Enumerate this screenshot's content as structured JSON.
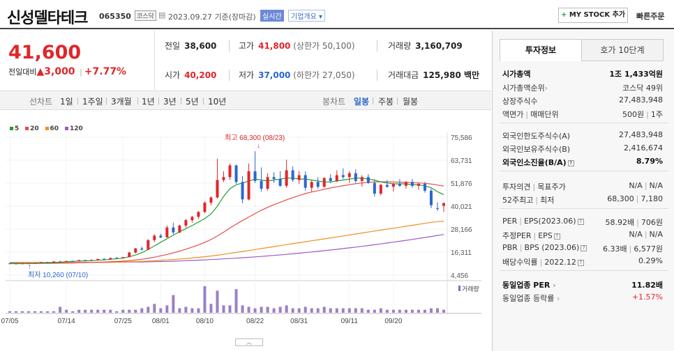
{
  "header": {
    "name": "신성델타테크",
    "code": "065350",
    "market": "코스닥",
    "date": "2023.09.27 기준(장마감)",
    "realtime": "실시간",
    "overview": "기업개요 ▾",
    "mystock_label": "MY STOCK 추가",
    "mystock_plus": "+",
    "quick_order": "빠른주문"
  },
  "quote": {
    "price": "41,600",
    "change_label": "전일대비",
    "change_arrow": "▲",
    "change": "3,000",
    "change_pct": "+7.77%",
    "prev_label": "전일",
    "prev": "38,600",
    "high_label": "고가",
    "high": "41,800",
    "high_limit": "(상한가 50,100)",
    "volume_label": "거래량",
    "volume": "3,160,709",
    "open_label": "시가",
    "open": "40,200",
    "low_label": "저가",
    "low": "37,000",
    "low_limit": "(하한가 27,050)",
    "amount_label": "거래대금",
    "amount": "125,980 백만"
  },
  "toolbar": {
    "line_label": "선차트",
    "line_items": [
      "1일",
      "1주일",
      "3개월",
      "1년",
      "3년",
      "5년",
      "10년"
    ],
    "candle_label": "봉차트",
    "candle_items": [
      "일봉",
      "주봉",
      "월봉"
    ],
    "selected": "일봉"
  },
  "legend": [
    {
      "label": "5",
      "color": "#23a02b"
    },
    {
      "label": "20",
      "color": "#e84a4a"
    },
    {
      "label": "60",
      "color": "#f0901e"
    },
    {
      "label": "120",
      "color": "#9a5bc6"
    }
  ],
  "chart_data": {
    "type": "candlestick",
    "y_ticks": [
      "75,586",
      "63,731",
      "51,876",
      "40,021",
      "28,166",
      "16,311",
      "4,456"
    ],
    "ylim": [
      4456,
      75586
    ],
    "x_ticks": [
      "07/05",
      "07/14",
      "07/25",
      "08/01",
      "08/10",
      "08/22",
      "08/31",
      "09/11",
      "09/20"
    ],
    "high_annotation": "최고 68,300 (08/23)",
    "low_annotation": "최저 10,260 (07/10)",
    "volume_label": "거래량",
    "candles": [
      [
        10500,
        10600,
        10300,
        10400
      ],
      [
        10400,
        10450,
        10260,
        10300
      ],
      [
        10300,
        10500,
        10260,
        10450
      ],
      [
        10450,
        10600,
        10400,
        10500
      ],
      [
        10500,
        10700,
        10400,
        10600
      ],
      [
        10600,
        11200,
        10500,
        11100
      ],
      [
        11100,
        11300,
        10800,
        10900
      ],
      [
        10900,
        11600,
        10800,
        11500
      ],
      [
        11500,
        11800,
        11300,
        11400
      ],
      [
        11400,
        11900,
        11300,
        11700
      ],
      [
        11700,
        11900,
        11500,
        11600
      ],
      [
        11600,
        12300,
        11500,
        12200
      ],
      [
        12200,
        12400,
        11900,
        12000
      ],
      [
        12000,
        12500,
        11900,
        12300
      ],
      [
        12300,
        12900,
        12200,
        12800
      ],
      [
        12800,
        13200,
        12400,
        12500
      ],
      [
        12500,
        13500,
        12400,
        13300
      ],
      [
        13300,
        13800,
        13000,
        13200
      ],
      [
        13200,
        13900,
        13100,
        13700
      ],
      [
        13700,
        16500,
        13600,
        16100
      ],
      [
        16100,
        18500,
        15600,
        18200
      ],
      [
        18200,
        19200,
        17200,
        17600
      ],
      [
        17600,
        23000,
        17400,
        22500
      ],
      [
        22500,
        25500,
        21500,
        24800
      ],
      [
        24800,
        25800,
        23500,
        23900
      ],
      [
        23900,
        30000,
        23800,
        29000
      ],
      [
        29000,
        31500,
        25500,
        26500
      ],
      [
        26500,
        30500,
        26000,
        30000
      ],
      [
        30000,
        33500,
        29000,
        32800
      ],
      [
        32800,
        35000,
        31500,
        34500
      ],
      [
        34500,
        37500,
        33500,
        37000
      ],
      [
        37000,
        42500,
        36500,
        41800
      ],
      [
        41800,
        45000,
        40500,
        44500
      ],
      [
        44500,
        64500,
        44000,
        53500
      ],
      [
        53500,
        58000,
        52500,
        55000
      ],
      [
        55000,
        62000,
        53500,
        61000
      ],
      [
        61000,
        61500,
        51500,
        52500
      ],
      [
        52500,
        55500,
        41500,
        43500
      ],
      [
        43500,
        62000,
        43000,
        58000
      ],
      [
        58000,
        68300,
        52000,
        53000
      ],
      [
        53000,
        60000,
        47500,
        49000
      ],
      [
        49000,
        57000,
        48000,
        55000
      ],
      [
        55000,
        57500,
        52000,
        54000
      ],
      [
        54000,
        58000,
        50000,
        50500
      ],
      [
        50500,
        64000,
        49500,
        58500
      ],
      [
        58500,
        60500,
        52500,
        53500
      ],
      [
        53500,
        58000,
        51500,
        56000
      ],
      [
        56000,
        58000,
        48000,
        49500
      ],
      [
        49500,
        53500,
        47500,
        52500
      ],
      [
        52500,
        55000,
        49000,
        50000
      ],
      [
        50000,
        55000,
        49500,
        54500
      ],
      [
        54500,
        56500,
        52000,
        53000
      ],
      [
        53000,
        58500,
        52500,
        56000
      ],
      [
        56000,
        59500,
        54000,
        55000
      ],
      [
        55000,
        58000,
        52000,
        57000
      ],
      [
        57000,
        59000,
        52000,
        53000
      ],
      [
        53000,
        56000,
        50000,
        55000
      ],
      [
        55000,
        56500,
        51500,
        52000
      ],
      [
        52000,
        53500,
        45000,
        46500
      ],
      [
        46500,
        51500,
        45500,
        51000
      ],
      [
        51000,
        53500,
        49500,
        50000
      ],
      [
        50000,
        52000,
        47500,
        51500
      ],
      [
        51500,
        54000,
        50000,
        50500
      ],
      [
        50500,
        53000,
        49000,
        52500
      ],
      [
        52500,
        54000,
        49500,
        50500
      ],
      [
        50500,
        52000,
        48500,
        51500
      ],
      [
        51500,
        52500,
        47000,
        48000
      ],
      [
        48000,
        49000,
        39000,
        40500
      ],
      [
        39000,
        42000,
        37500,
        38600
      ],
      [
        40200,
        41800,
        37000,
        41600
      ]
    ],
    "volumes": [
      1,
      1,
      1,
      1,
      1,
      1,
      1,
      1,
      4,
      2,
      1,
      2,
      2,
      2,
      2,
      2,
      2,
      1,
      2,
      2,
      2,
      3,
      4,
      6,
      3,
      5,
      12,
      3,
      4,
      3,
      3,
      18,
      6,
      15,
      5,
      5,
      16,
      5,
      4,
      3,
      4,
      4,
      3,
      4,
      5,
      3,
      3,
      4,
      3,
      3,
      4,
      3,
      3,
      3,
      3,
      3,
      3,
      2,
      2,
      3,
      2,
      2,
      2,
      2,
      2,
      2,
      2,
      3,
      3,
      2
    ],
    "ma5": [
      10400,
      10380,
      10370,
      10400,
      10450,
      10600,
      10700,
      10900,
      11100,
      11300,
      11500,
      11700,
      11800,
      11900,
      12100,
      12300,
      12600,
      12900,
      13200,
      13900,
      14800,
      16000,
      17600,
      19500,
      21400,
      23200,
      25100,
      26800,
      28400,
      30000,
      31800,
      33600,
      36000,
      40000,
      45000,
      49000,
      51000,
      52000,
      53000,
      54000,
      53500,
      53000,
      53500,
      54000,
      54500,
      54500,
      54000,
      54000,
      53500,
      53000,
      52500,
      52500,
      53000,
      53500,
      54000,
      54500,
      54500,
      54000,
      53500,
      52500,
      52000,
      51500,
      51500,
      51500,
      51000,
      51000,
      50500,
      49500,
      47500,
      46000
    ],
    "ma20": [
      10600,
      10550,
      10500,
      10480,
      10470,
      10480,
      10500,
      10550,
      10600,
      10650,
      10700,
      10800,
      10900,
      11000,
      11100,
      11200,
      11350,
      11500,
      11650,
      11900,
      12200,
      12600,
      13100,
      13700,
      14400,
      15100,
      15900,
      16800,
      17800,
      18900,
      20000,
      21300,
      22800,
      24600,
      26600,
      28700,
      30700,
      32600,
      34400,
      36200,
      37900,
      39400,
      40800,
      42000,
      43300,
      44400,
      45500,
      46500,
      47300,
      48000,
      48700,
      49400,
      50000,
      50600,
      51100,
      51600,
      52000,
      52300,
      52500,
      52600,
      52600,
      52500,
      52400,
      52300,
      52200,
      52000,
      51800,
      51400,
      50900,
      50400
    ],
    "ma60": [
      10900,
      10880,
      10860,
      10850,
      10840,
      10840,
      10840,
      10850,
      10860,
      10870,
      10890,
      10910,
      10940,
      10970,
      11000,
      11050,
      11100,
      11160,
      11230,
      11320,
      11420,
      11540,
      11680,
      11850,
      12050,
      12270,
      12500,
      12750,
      13010,
      13300,
      13600,
      13930,
      14300,
      14700,
      15150,
      15650,
      16150,
      16650,
      17150,
      17650,
      18150,
      18650,
      19150,
      19650,
      20150,
      20650,
      21150,
      21650,
      22150,
      22650,
      23150,
      23650,
      24150,
      24650,
      25150,
      25650,
      26150,
      26650,
      27150,
      27650,
      28150,
      28650,
      29150,
      29650,
      30150,
      30650,
      31150,
      31650,
      32000,
      32300
    ],
    "ma120": [
      11000,
      10990,
      10980,
      10970,
      10960,
      10950,
      10950,
      10950,
      10950,
      10960,
      10970,
      10980,
      10990,
      11000,
      11020,
      11040,
      11060,
      11090,
      11120,
      11160,
      11200,
      11250,
      11310,
      11380,
      11460,
      11550,
      11650,
      11760,
      11880,
      12010,
      12150,
      12300,
      12460,
      12630,
      12810,
      13000,
      13200,
      13410,
      13630,
      13860,
      14100,
      14350,
      14610,
      14880,
      15160,
      15450,
      15750,
      16060,
      16380,
      16710,
      17050,
      17400,
      17760,
      18130,
      18510,
      18900,
      19300,
      19710,
      20130,
      20560,
      21000,
      21450,
      21910,
      22380,
      22860,
      23350,
      23850,
      24360,
      24880,
      25400
    ]
  },
  "tabs": [
    "투자정보",
    "호가 10단계"
  ],
  "info": {
    "mcap_label": "시가총액",
    "mcap": "1조 1,433억원",
    "mcap_rank_label": "시가총액순위",
    "mcap_rank": "코스닥 49위",
    "shares_label": "상장주식수",
    "shares": "27,483,948",
    "face_label": "액면가",
    "unit_label": "매매단위",
    "face": "500원",
    "unit": "1주",
    "foreign_limit_label": "외국인한도주식수(A)",
    "foreign_limit": "27,483,948",
    "foreign_hold_label": "외국인보유주식수(B)",
    "foreign_hold": "2,416,674",
    "foreign_ratio_label": "외국인소진율(B/A)",
    "foreign_ratio": "8.79%",
    "opinion_label": "투자의견",
    "target_label": "목표주가",
    "opinion": "N/A",
    "target": "N/A",
    "w52h_label": "52주최고",
    "w52l_label": "최저",
    "w52h": "68,300",
    "w52l": "7,180",
    "per_label": "PER",
    "eps_label": "EPS(2023.06)",
    "per": "58.92배",
    "eps": "706원",
    "eper_label": "추정PER",
    "eeps_label": "EPS",
    "eper": "N/A",
    "eeps": "N/A",
    "pbr_label": "PBR",
    "bps_label": "BPS (2023.06)",
    "pbr": "6.33배",
    "bps": "6,577원",
    "div_label": "배당수익률",
    "div_date": "2022.12",
    "div": "0.29%",
    "sector_per_label": "동일업종 PER",
    "sector_per": "11.82배",
    "sector_chg_label": "동일업종 등락률",
    "sector_chg": "+1.57%"
  },
  "collapse_icon": "chevron-up-icon"
}
